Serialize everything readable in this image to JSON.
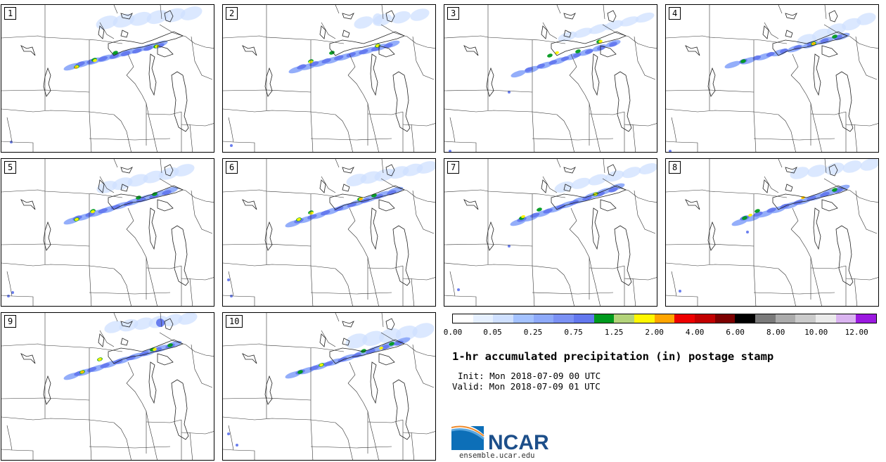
{
  "panels": [
    {
      "label": "1"
    },
    {
      "label": "2"
    },
    {
      "label": "3"
    },
    {
      "label": "4"
    },
    {
      "label": "5"
    },
    {
      "label": "6"
    },
    {
      "label": "7"
    },
    {
      "label": "8"
    },
    {
      "label": "9"
    },
    {
      "label": "10"
    }
  ],
  "colorbar": {
    "colors": [
      "#ffffff",
      "#e6f0ff",
      "#cfe0ff",
      "#a4c2ff",
      "#8eaafa",
      "#7b91f4",
      "#6378ee",
      "#009a1e",
      "#b3d37a",
      "#fff700",
      "#ffa500",
      "#ee0000",
      "#c20000",
      "#7c0000",
      "#000000",
      "#7a7a7a",
      "#ababab",
      "#cbcbcb",
      "#ebebeb",
      "#dab4f0",
      "#9b19e0"
    ],
    "tick_labels": [
      "0.00",
      "0.05",
      "0.25",
      "0.75",
      "1.25",
      "2.00",
      "4.00",
      "6.00",
      "8.00",
      "10.00",
      "12.00"
    ]
  },
  "title": "1-hr accumulated precipitation (in) postage stamp",
  "init": "Init: Mon 2018-07-09 00 UTC",
  "valid": "Valid: Mon 2018-07-09 01 UTC",
  "logo": {
    "text": "NCAR",
    "url": "ensemble.ucar.edu"
  },
  "colors": {
    "light_blue": "#cfe0ff",
    "mid_blue": "#8eaafa",
    "blue": "#6378ee",
    "green": "#009a1e",
    "yellow": "#fff700",
    "orange": "#ffa500"
  }
}
